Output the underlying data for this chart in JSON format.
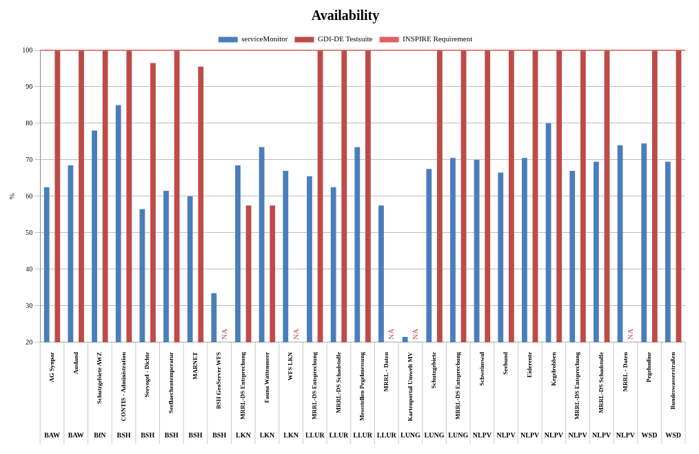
{
  "chart_data": {
    "type": "bar",
    "title": "Availability",
    "ylabel": "%",
    "categories": [
      "AG Synpar",
      "Ausland",
      "Schutzgebiete AWZ",
      "CONTIS - Administration",
      "Seevogel - Dichte",
      "Seeflaechentemperatur",
      "MARNET",
      "BSH GeoServer WFS",
      "MRRL-DS Entsprechung",
      "Fauna Wattenmeer",
      "WFS LKN",
      "MRRL-DS Entsprechung",
      "MRRL-DS Schadstoffe",
      "Messstellen Pegelmessung",
      "MRRL - Daten",
      "Kartenportal Umwelt MV",
      "Schutzgebiete",
      "MRRL-DS Entsprechung",
      "Schweinswal",
      "Seehund",
      "Eiderente",
      "Kegelrobben",
      "MRRL-DS Entsprechung",
      "MRRL-DS Schadstoffe",
      "MRRL - Daten",
      "Pegelonline",
      "Bundeswasserstraßen"
    ],
    "series": [
      {
        "name": "serviceMonitor",
        "color": "#4a7ebb",
        "values": [
          62.5,
          68.5,
          78,
          85,
          56.5,
          61.5,
          60,
          33.5,
          68.5,
          73.5,
          67,
          65.5,
          62.5,
          73.5,
          57.5,
          21.5,
          67.5,
          70.5,
          70,
          66.5,
          70.5,
          80,
          67,
          69.5,
          74,
          74.5,
          69.5
        ]
      },
      {
        "name": "GDI-DE Testsuite",
        "color": "#be4b48",
        "values": [
          100,
          100,
          100,
          100,
          96.5,
          100,
          95.5,
          null,
          57.5,
          57.5,
          null,
          100,
          100,
          100,
          null,
          null,
          100,
          100,
          100,
          100,
          100,
          100,
          100,
          100,
          null,
          100,
          100
        ],
        "value_labels": [
          null,
          null,
          null,
          null,
          null,
          null,
          null,
          "NA",
          null,
          null,
          "NA",
          null,
          null,
          null,
          "NA",
          "NA",
          null,
          null,
          null,
          null,
          null,
          null,
          null,
          null,
          "NA",
          null,
          null
        ]
      }
    ],
    "ref_lines": [
      {
        "axis": "y",
        "value": 100,
        "label": "INSPIRE Requirement",
        "color": "#e06060"
      }
    ],
    "annotations": [
      "BAW",
      "BAW",
      "BfN",
      "BSH",
      "BSH",
      "BSH",
      "BSH",
      "BSH",
      "LKN",
      "LKN",
      "LKN",
      "LLUR",
      "LLUR",
      "LLUR",
      "LLUR",
      "LUNG",
      "LUNG",
      "LUNG",
      "NLPV",
      "NLPV",
      "NLPV",
      "NLPV",
      "NLPV",
      "NLPV",
      "NLPV",
      "WSD",
      "WSD"
    ],
    "ylim": [
      20,
      100
    ],
    "yticks": [
      20,
      30,
      40,
      50,
      60,
      70,
      80,
      90,
      100
    ],
    "grid": "y",
    "legend": "top"
  }
}
